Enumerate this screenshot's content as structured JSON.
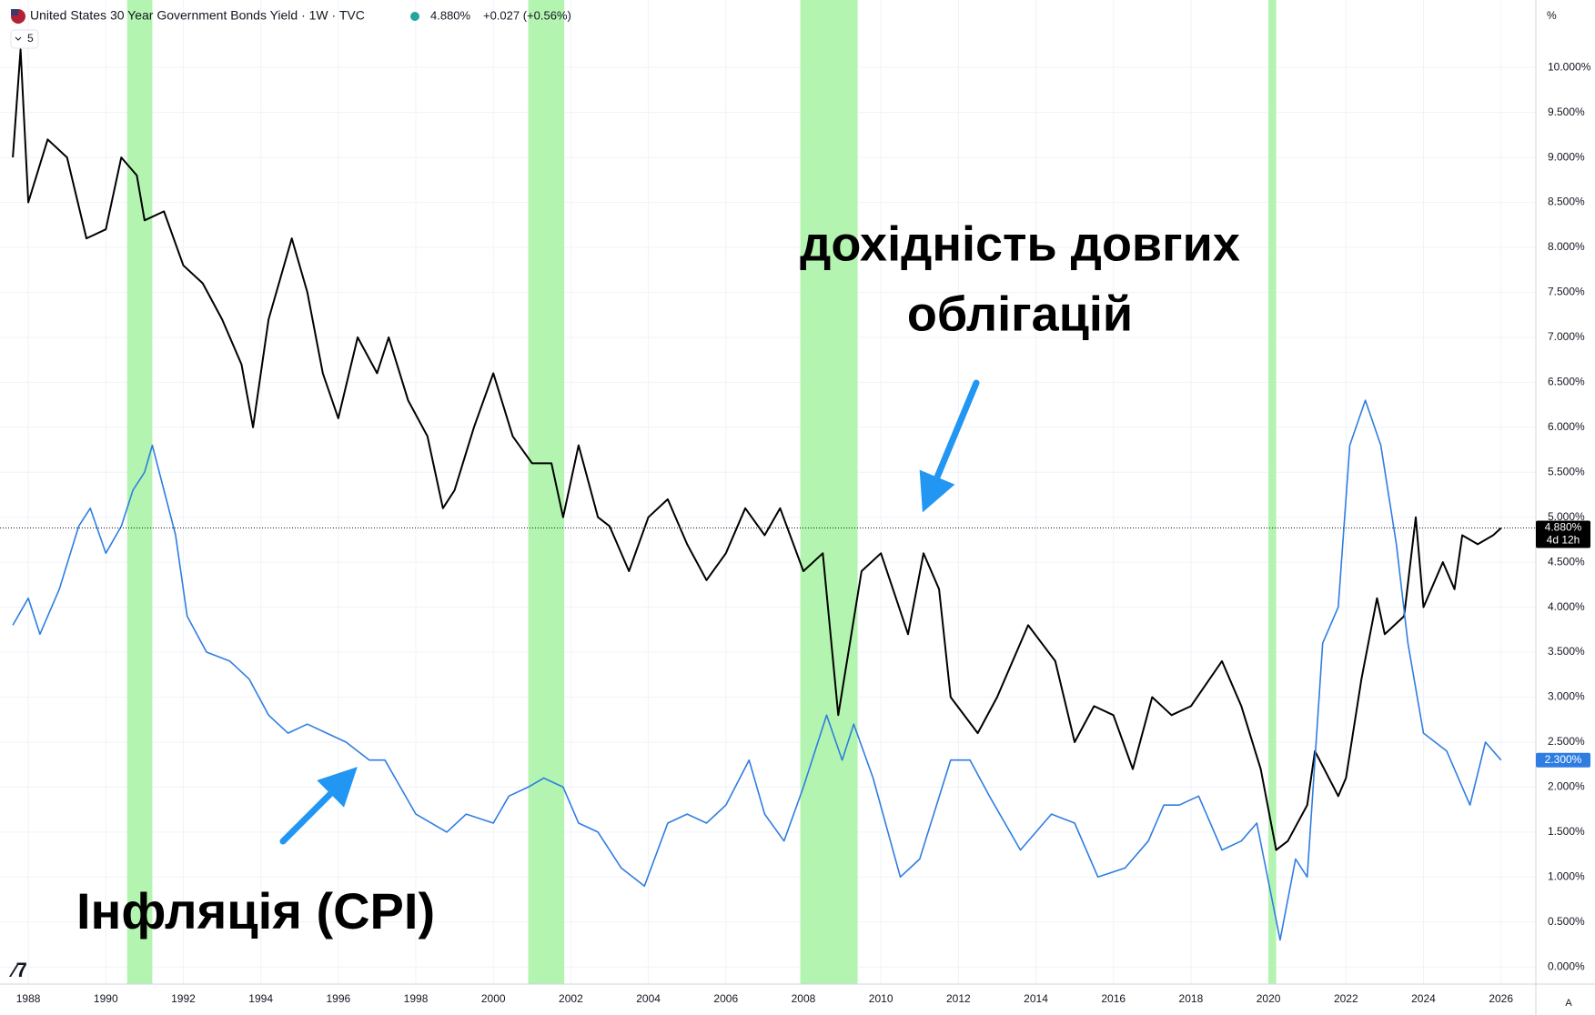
{
  "header": {
    "title": "United States 30 Year Government Bonds Yield · 1W · TVC",
    "price": "4.880%",
    "change": "+0.027 (+0.56%)",
    "indicator_count": "5"
  },
  "ui": {
    "unit_label": "%",
    "auto_button": "A"
  },
  "chart_data": {
    "type": "line",
    "annotations": [
      "дохідність довгих",
      "облігацій",
      "Інфляція (CPI)"
    ],
    "xlim": [
      1987.27,
      2026.9
    ],
    "xticks": [
      1988,
      1990,
      1992,
      1994,
      1996,
      1998,
      2000,
      2002,
      2004,
      2006,
      2008,
      2010,
      2012,
      2014,
      2016,
      2018,
      2020,
      2022,
      2024,
      2026
    ],
    "ylim": [
      -0.19,
      10.75
    ],
    "yticks": [
      {
        "value": 0,
        "label": "0.000%"
      },
      {
        "value": 0.5,
        "label": "0.500%"
      },
      {
        "value": 1,
        "label": "1.000%"
      },
      {
        "value": 1.5,
        "label": "1.500%"
      },
      {
        "value": 2,
        "label": "2.000%"
      },
      {
        "value": 2.5,
        "label": "2.500%"
      },
      {
        "value": 3,
        "label": "3.000%"
      },
      {
        "value": 3.5,
        "label": "3.500%"
      },
      {
        "value": 4,
        "label": "4.000%"
      },
      {
        "value": 4.5,
        "label": "4.500%"
      },
      {
        "value": 5,
        "label": "5.000%"
      },
      {
        "value": 5.5,
        "label": "5.500%"
      },
      {
        "value": 6,
        "label": "6.000%"
      },
      {
        "value": 6.5,
        "label": "6.500%"
      },
      {
        "value": 7,
        "label": "7.000%"
      },
      {
        "value": 7.5,
        "label": "7.500%"
      },
      {
        "value": 8,
        "label": "8.000%"
      },
      {
        "value": 8.5,
        "label": "8.500%"
      },
      {
        "value": 9,
        "label": "9.000%"
      },
      {
        "value": 9.5,
        "label": "9.500%"
      },
      {
        "value": 10,
        "label": "10.000%"
      }
    ],
    "grid": true,
    "shaded_color": "#b3f5b0",
    "shaded_ranges": [
      [
        1990.55,
        1991.2
      ],
      [
        2000.9,
        2001.83
      ],
      [
        2007.92,
        2009.4
      ],
      [
        2020.0,
        2020.2
      ]
    ],
    "series": [
      {
        "name": "United States 30 Year Government Bonds Yield",
        "color": "#000000",
        "last_label": "4.880%",
        "countdown": "4d 12h",
        "x": [
          1987.6,
          1987.8,
          1988.0,
          1988.5,
          1989.0,
          1989.5,
          1990.0,
          1990.4,
          1990.8,
          1991.0,
          1991.5,
          1992.0,
          1992.5,
          1993.0,
          1993.5,
          1993.8,
          1994.2,
          1994.8,
          1995.2,
          1995.6,
          1996.0,
          1996.5,
          1997.0,
          1997.3,
          1997.8,
          1998.3,
          1998.7,
          1999.0,
          1999.5,
          2000.0,
          2000.5,
          2001.0,
          2001.5,
          2001.8,
          2002.2,
          2002.7,
          2003.0,
          2003.5,
          2004.0,
          2004.5,
          2005.0,
          2005.5,
          2006.0,
          2006.5,
          2007.0,
          2007.4,
          2008.0,
          2008.5,
          2008.9,
          2009.5,
          2010.0,
          2010.7,
          2011.1,
          2011.5,
          2011.8,
          2012.5,
          2013.0,
          2013.8,
          2014.5,
          2015.0,
          2015.5,
          2016.0,
          2016.5,
          2017.0,
          2017.5,
          2018.0,
          2018.8,
          2019.3,
          2019.8,
          2020.2,
          2020.5,
          2021.0,
          2021.2,
          2021.8,
          2022.0,
          2022.4,
          2022.8,
          2023.0,
          2023.5,
          2023.8,
          2024.0,
          2024.5,
          2024.8,
          2025.0,
          2025.4,
          2025.8,
          2026.0
        ],
        "values": [
          9.0,
          10.2,
          8.5,
          9.2,
          9.0,
          8.1,
          8.2,
          9.0,
          8.8,
          8.3,
          8.4,
          7.8,
          7.6,
          7.2,
          6.7,
          6.0,
          7.2,
          8.1,
          7.5,
          6.6,
          6.1,
          7.0,
          6.6,
          7.0,
          6.3,
          5.9,
          5.1,
          5.3,
          6.0,
          6.6,
          5.9,
          5.6,
          5.6,
          5.0,
          5.8,
          5.0,
          4.9,
          4.4,
          5.0,
          5.2,
          4.7,
          4.3,
          4.6,
          5.1,
          4.8,
          5.1,
          4.4,
          4.6,
          2.8,
          4.4,
          4.6,
          3.7,
          4.6,
          4.2,
          3.0,
          2.6,
          3.0,
          3.8,
          3.4,
          2.5,
          2.9,
          2.8,
          2.2,
          3.0,
          2.8,
          2.9,
          3.4,
          2.9,
          2.2,
          1.3,
          1.4,
          1.8,
          2.4,
          1.9,
          2.1,
          3.2,
          4.1,
          3.7,
          3.9,
          5.0,
          4.0,
          4.5,
          4.2,
          4.8,
          4.7,
          4.8,
          4.88
        ]
      },
      {
        "name": "Інфляція (CPI)",
        "color": "#2f7de1",
        "last_label": "2.300%",
        "x": [
          1987.6,
          1988.0,
          1988.3,
          1988.8,
          1989.3,
          1989.6,
          1990.0,
          1990.4,
          1990.7,
          1991.0,
          1991.2,
          1991.5,
          1991.8,
          1992.1,
          1992.6,
          1993.2,
          1993.7,
          1994.2,
          1994.7,
          1995.2,
          1995.7,
          1996.2,
          1996.8,
          1997.2,
          1997.6,
          1998.0,
          1998.8,
          1999.3,
          2000.0,
          2000.4,
          2000.9,
          2001.3,
          2001.8,
          2002.2,
          2002.7,
          2003.3,
          2003.9,
          2004.5,
          2005.0,
          2005.5,
          2006.0,
          2006.6,
          2007.0,
          2007.5,
          2008.0,
          2008.6,
          2009.0,
          2009.3,
          2009.8,
          2010.5,
          2011.0,
          2011.8,
          2012.3,
          2012.8,
          2013.6,
          2014.4,
          2015.0,
          2015.6,
          2016.3,
          2016.9,
          2017.3,
          2017.7,
          2018.2,
          2018.8,
          2019.3,
          2019.7,
          2020.3,
          2020.7,
          2021.0,
          2021.4,
          2021.8,
          2022.1,
          2022.5,
          2022.9,
          2023.3,
          2023.6,
          2024.0,
          2024.6,
          2025.2,
          2025.6,
          2026.0
        ],
        "values": [
          3.8,
          4.1,
          3.7,
          4.2,
          4.9,
          5.1,
          4.6,
          4.9,
          5.3,
          5.5,
          5.8,
          5.3,
          4.8,
          3.9,
          3.5,
          3.4,
          3.2,
          2.8,
          2.6,
          2.7,
          2.6,
          2.5,
          2.3,
          2.3,
          2.0,
          1.7,
          1.5,
          1.7,
          1.6,
          1.9,
          2.0,
          2.1,
          2.0,
          1.6,
          1.5,
          1.1,
          0.9,
          1.6,
          1.7,
          1.6,
          1.8,
          2.3,
          1.7,
          1.4,
          2.0,
          2.8,
          2.3,
          2.7,
          2.1,
          1.0,
          1.2,
          2.3,
          2.3,
          1.9,
          1.3,
          1.7,
          1.6,
          1.0,
          1.1,
          1.4,
          1.8,
          1.8,
          1.9,
          1.3,
          1.4,
          1.6,
          0.3,
          1.2,
          1.0,
          3.6,
          4.0,
          5.8,
          6.3,
          5.8,
          4.7,
          3.6,
          2.6,
          2.4,
          1.8,
          2.5,
          2.3
        ]
      }
    ]
  }
}
